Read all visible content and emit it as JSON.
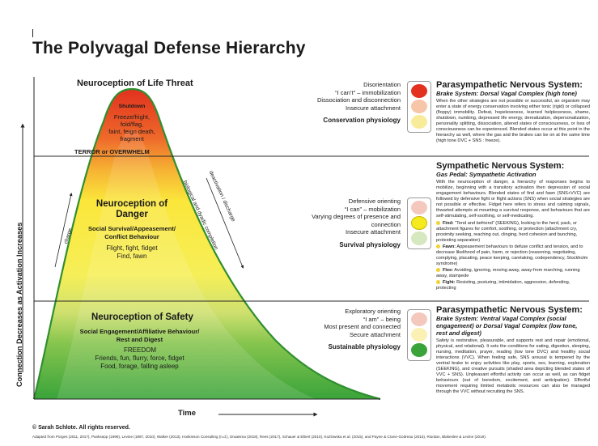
{
  "title": "The Polyvagal Defense Hierarchy",
  "axes": {
    "y_label": "Connection Decreases as Activation Increases",
    "x_label": "Time"
  },
  "zones": {
    "threat": {
      "heading": "Neuroception of Life Threat",
      "shutdown": "Shutdown",
      "lines": [
        "Freeze/fright,",
        "fold/flag,",
        "faint, feign death,",
        "fragment"
      ],
      "threshold": "TERROR or OVERWHELM",
      "list": [
        "Disorientation",
        "“I can’t” – immobilization",
        "Dissociation and disconnection",
        "Insecure attachment"
      ],
      "physiology": "Conservation physiology",
      "system_title": "Parasympathetic Nervous System:",
      "system_sub": "Brake System: Dorsal Vagal Complex (high tone)",
      "system_body": "When the other strategies are not possible or successful, an organism may enter a state of energy conservation involving either tonic (rigid) or collapsed (floppy) immobility. Defeat, hopelessness, learned helplessness, shame, shutdown, numbing, depressed life energy, derealization, depersonalization, personality splitting, dissociation, altered states of consciousness, or loss of consciousness can be experienced. Blended states occur at this point in the hierarchy as well, where the gas and the brakes can be on at the same time (high tone DVC + SNS : freeze)."
    },
    "danger": {
      "heading1": "Neuroception of",
      "heading2": "Danger",
      "sub": "Social Survival/Appeasement/",
      "sub2": "Conflict Behaviour",
      "lines": [
        "Flight, fight, fidget",
        "Find, fawn"
      ],
      "charge": "charge",
      "discharge": "deactivation / discharge",
      "biological": "biological and dyadic completion",
      "list": [
        "Defensive orienting",
        "“I can” – mobilization",
        "Varying degrees of presence and",
        "connection",
        "Insecure attachment"
      ],
      "physiology": "Survival physiology",
      "system_title": "Sympathetic Nervous System:",
      "system_sub": "Gas Pedal: Sympathetic Activation",
      "system_body": "With the neuroception of danger, a hierarchy of responses begins to mobilize, beginning with a transitory activation then depression of social engagement behaviours. Blended states of find and fawn (SNS+VVC) are followed by defensive fight or flight actions (SNS) when social strategies are not possible or effective. Fidget here refers to stress and calming signals, thwarted attempts at mounting a survival response, and behaviours that are self-stimulating, self-soothing, or self-medicating.",
      "bullets": [
        {
          "label": "Find:",
          "text": " “Tend and befriend” (SEEKING), looking to the herd, pack, or attachment figures for comfort, soothing, or protection (attachment cry, proximity seeking, reaching out, clinging, herd cohesion and bunching, protesting separation)"
        },
        {
          "label": "Fawn:",
          "text": " Appeasement behaviours to defuse conflict and tension, and to decrease likelihood of pain, harm, or rejection (reasoning, negotiating, complying, placating, peace keeping, caretaking, codependency, Stockholm syndrome)"
        },
        {
          "label": "Flee:",
          "text": " Avoiding, ignoring, moving away, away-from marching, running away, stampede"
        },
        {
          "label": "Fight:",
          "text": " Resisting, posturing, intimidation, aggression, defending, protecting"
        }
      ]
    },
    "safety": {
      "heading": "Neuroception of Safety",
      "sub": "Social Engagement/Affiliative Behaviour/",
      "sub2": "Rest and Digest",
      "freedom": "FREEDOM",
      "lines": [
        "Friends, fun, flurry, force, fidget",
        "Food, forage, falling asleep"
      ],
      "list": [
        "Exploratory orienting",
        "“I am” – being",
        "Most present and connected",
        "Secure attachment"
      ],
      "physiology": "Sustainable physiology",
      "system_title": "Parasympathetic Nervous System:",
      "system_sub": "Brake System: Ventral Vagal Complex (social engagement) or Dorsal Vagal Complex (low tone, rest and digest)",
      "system_body": "Safety is restorative, pleasurable, and supports rest and repair (emotional, physical, and relational). It sets the conditions for eating, digestion, sleeping, nursing, meditation, prayer, reading (low tone DVC) and healthy social interactions (VVC). When feeling safe, SNS arousal is tempered by the ventral brake to enjoy activities like play, sports, sex, learning, exploration (SEEKING), and creative pursuits (shaded area depicting blended states of VVC + SNS). Unpleasant effortful activity can occur as well, as can fidget behaviours (out of boredom, excitement, and anticipation). Effortful movement requiring limited metabolic resources can also be managed through the VVC without recruiting the SNS."
    }
  },
  "footer": {
    "copyright": "© Sarah Schlote. All rights reserved.",
    "sources": "Adapted from Porges (2011, 2017), Panksepp (1998), Levine (1997, 2010), Walker (2013), Hoskinson Consulting (n.d.), Draaisma (2018), Rees (2017), Schauer & Elbert (2010), Kozlowska et al. (2015), and Payne & Crane-Godreau (2015), Riordan, Blakeslee & Levine (2019)."
  },
  "colors": {
    "red": "#e2311f",
    "orange": "#f29a2e",
    "yellow": "#fbee3b",
    "green_light": "#c7dd72",
    "green": "#3aa43a",
    "lamp_off_red": "#f4c8bd",
    "lamp_off_yellow": "#fbf1b4",
    "lamp_off_green": "#d6e8bf"
  },
  "icons": [
    "traffic-light-red-icon",
    "traffic-light-yellow-icon",
    "traffic-light-green-icon"
  ]
}
